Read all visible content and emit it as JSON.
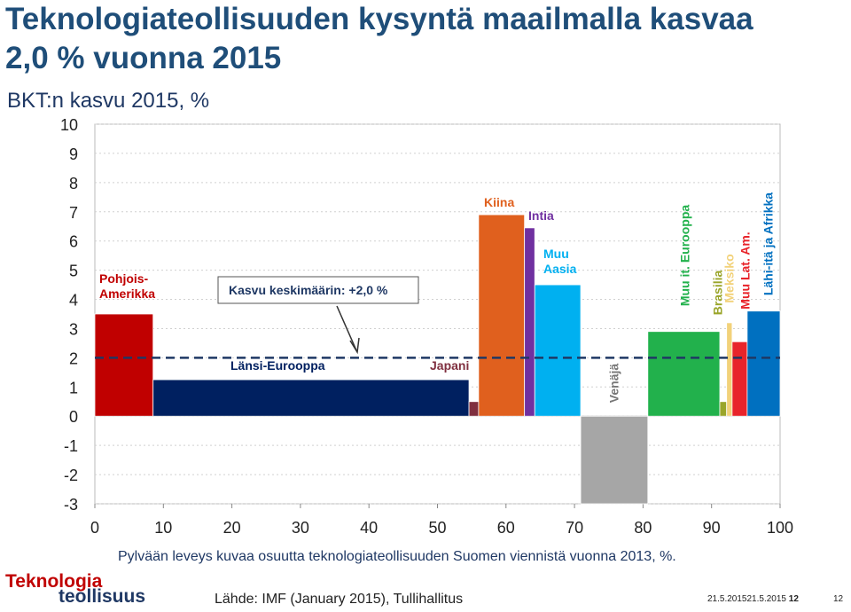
{
  "chart_data": {
    "type": "variable-width-bar",
    "title": "Teknologiateollisuuden kysyntä maailmalla kasvaa 2,0 % vuonna 2015",
    "subtitle": "BKT:n kasvu 2015, %",
    "categories": [
      "Pohjois-Amerikka",
      "Länsi-Eurooppa",
      "Japani",
      "Kiina",
      "Intia",
      "Muu Aasia",
      "Venäjä",
      "Muu it. Eurooppa",
      "Brasilia",
      "Meksiko",
      "Muu Lat. Am.",
      "Lähi-itä ja Afrikka"
    ],
    "widths": [
      8.5,
      46.1,
      1.4,
      6.7,
      1.5,
      6.7,
      9.8,
      10.5,
      1.0,
      0.8,
      2.2,
      4.8
    ],
    "values": [
      3.5,
      1.25,
      0.5,
      6.9,
      6.45,
      4.5,
      -3.0,
      2.9,
      0.5,
      3.2,
      2.55,
      3.6
    ],
    "colors": [
      "#c00000",
      "#002060",
      "#7f2f3f",
      "#e0601e",
      "#7030a0",
      "#00b0f0",
      "#a6a6a6",
      "#22b14c",
      "#9aa52a",
      "#f2d27a",
      "#e8242b",
      "#0070c0"
    ],
    "average": 2,
    "average_label": "Kasvu keskimäärin: +2,0 %",
    "xlim": [
      0,
      100
    ],
    "xticks": [
      0,
      10,
      20,
      30,
      40,
      50,
      60,
      70,
      80,
      90,
      100
    ],
    "ylim": [
      -3,
      10
    ],
    "yticks": [
      -3,
      -2,
      -1,
      0,
      1,
      2,
      3,
      4,
      5,
      6,
      7,
      8,
      9,
      10
    ],
    "grid": true,
    "note": "Pylvään leveys kuvaa osuutta teknologiateollisuuden Suomen viennistä vuonna 2013, %.",
    "source": "Lähde: IMF (January 2015), Tullihallitus"
  },
  "footer": {
    "logo_line1": "Teknologia",
    "logo_line2": "teollisuus",
    "date": "21.5.201521.5.2015",
    "page": "12",
    "page2": "12"
  }
}
